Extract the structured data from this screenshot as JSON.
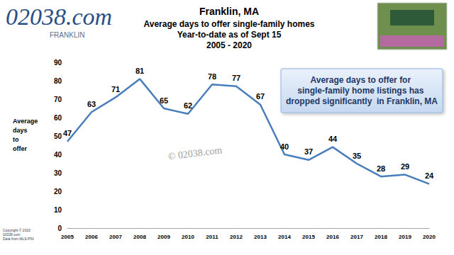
{
  "chart_data": {
    "type": "line",
    "title": "Franklin, MA",
    "subtitle": "Average days to offer single-family homes\nYear-to-date as of Sept 15\n2005 - 2020",
    "ylabel": "Average days to offer",
    "categories": [
      "2005",
      "2006",
      "2007",
      "2008",
      "2009",
      "2010",
      "2011",
      "2012",
      "2013",
      "2014",
      "2015",
      "2016",
      "2017",
      "2018",
      "2019",
      "2020"
    ],
    "values": [
      47,
      63,
      71,
      81,
      65,
      62,
      78,
      77,
      67,
      40,
      37,
      44,
      35,
      28,
      29,
      24
    ],
    "color": "#4a7ebb",
    "ylim": [
      0,
      90
    ],
    "yticks": [
      0,
      10,
      20,
      30,
      40,
      50,
      60,
      70,
      80,
      90
    ],
    "grid": false,
    "data_labels": true,
    "callout": "Average days to offer for single-family home listings has dropped significantly  in Franklin, MA",
    "watermark": "© 02038.com",
    "logo": "02038.com",
    "logo_subtitle": "FRANKLIN",
    "credit": "Copyright © 2020\n02038.com\nData from MLS-PIN"
  }
}
